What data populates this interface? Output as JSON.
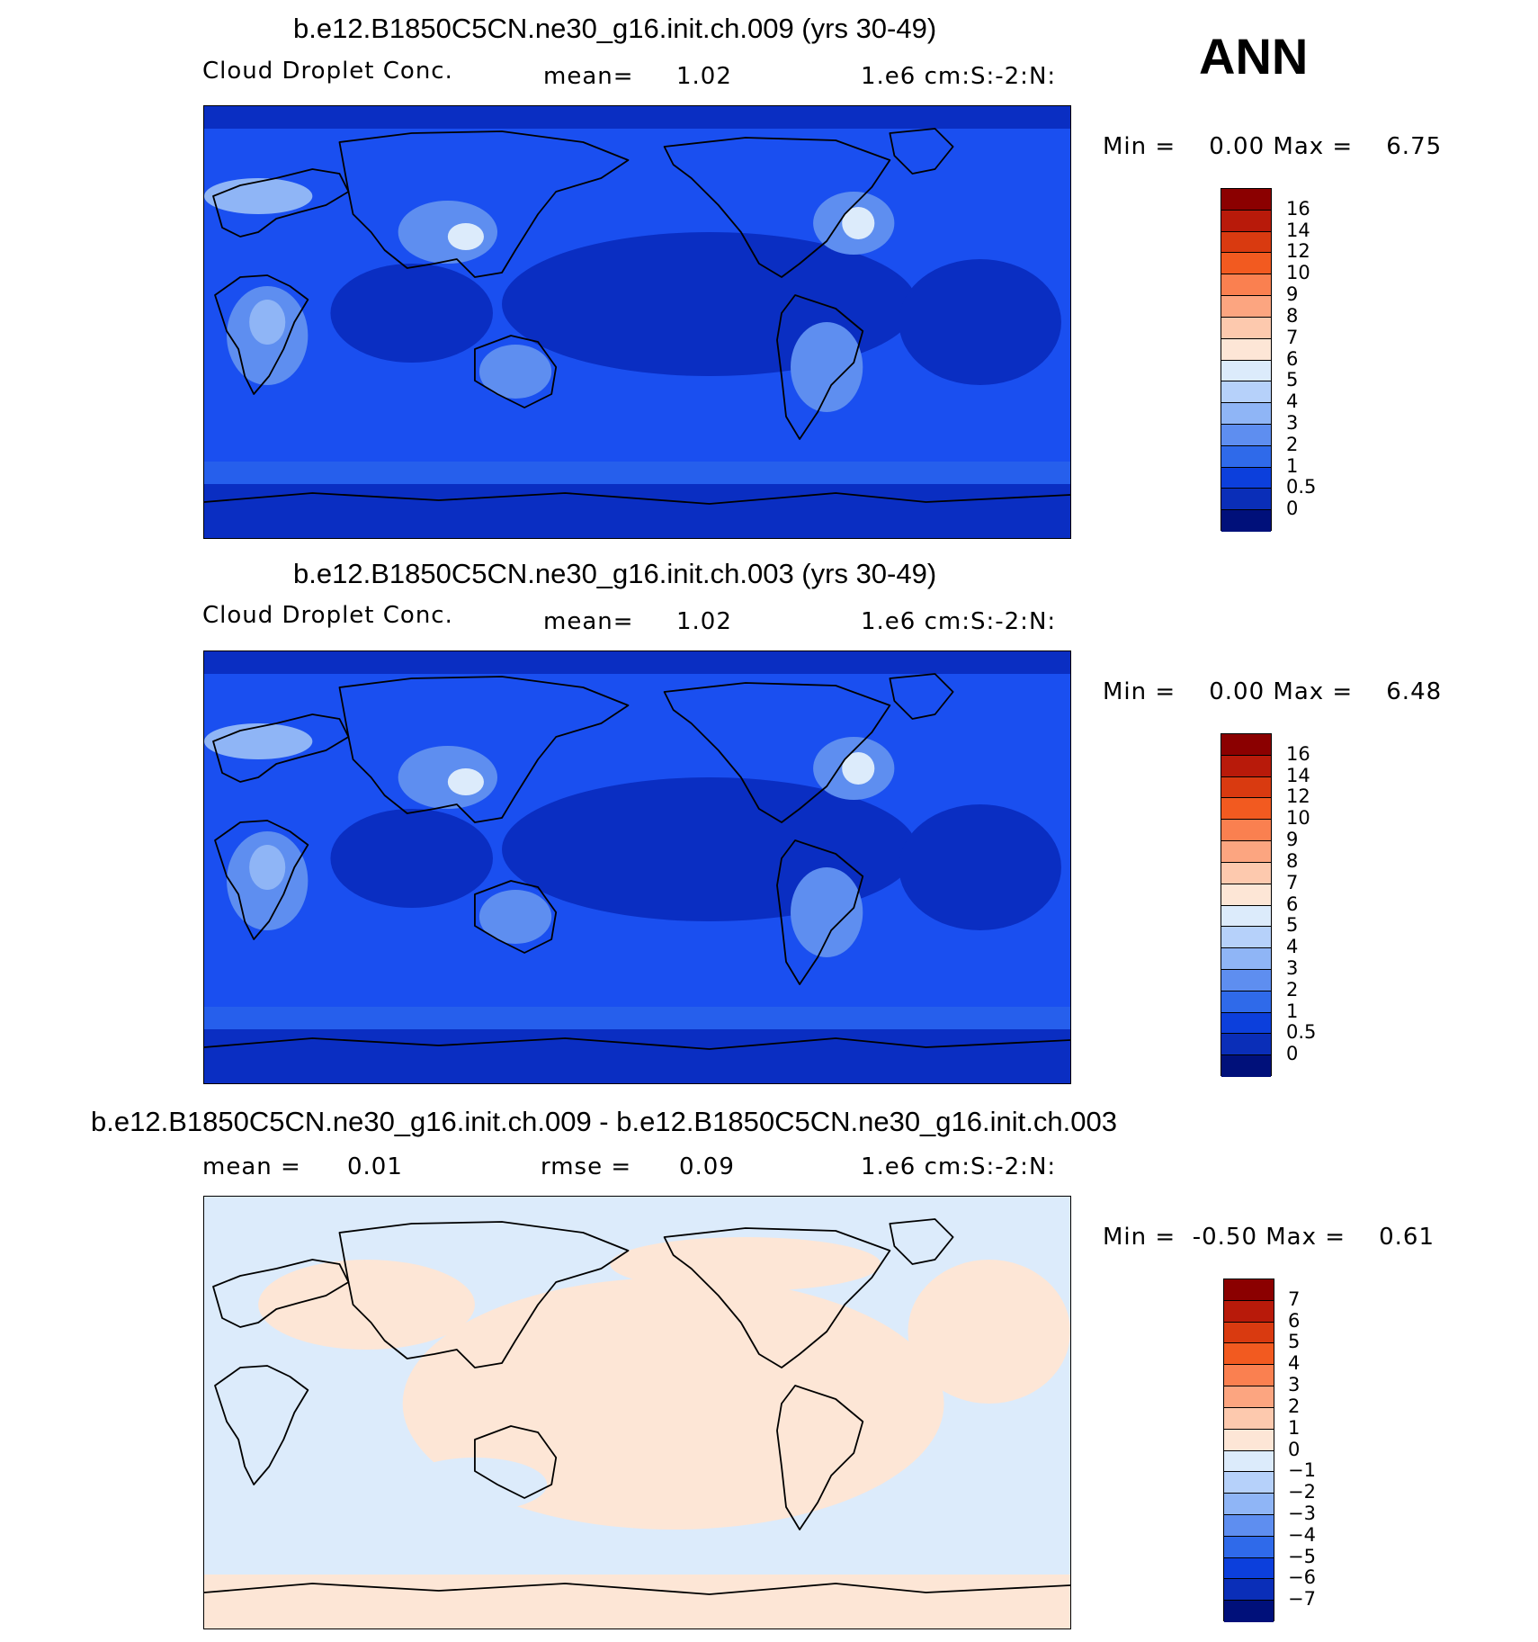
{
  "season": "ANN",
  "panels": [
    {
      "title": "b.e12.B1850C5CN.ne30_g16.init.ch.009 (yrs 30-49)",
      "variable": "Cloud Droplet Conc.",
      "stat_left": "mean=",
      "stat_left_value": "1.02",
      "units": "1.e6 cm:S:-2:N:",
      "minmax": "Min =    0.00 Max =    6.75",
      "colorbar_labels": [
        "16",
        "14",
        "12",
        "10",
        "9",
        "8",
        "7",
        "6",
        "5",
        "4",
        "3",
        "2",
        "1",
        "0.5",
        "0"
      ],
      "colorbar_colors": [
        "#8b0000",
        "#b81a0a",
        "#d93a10",
        "#f25a20",
        "#fa8050",
        "#fca580",
        "#fdc9ae",
        "#fde6d6",
        "#dcebfb",
        "#b6d1fa",
        "#8fb5f6",
        "#5e8ef0",
        "#2f6aea",
        "#0c3fdc",
        "#0a2eb8",
        "#00107a"
      ]
    },
    {
      "title": "b.e12.B1850C5CN.ne30_g16.init.ch.003 (yrs 30-49)",
      "variable": "Cloud Droplet Conc.",
      "stat_left": "mean=",
      "stat_left_value": "1.02",
      "units": "1.e6 cm:S:-2:N:",
      "minmax": "Min =    0.00 Max =    6.48",
      "colorbar_labels": [
        "16",
        "14",
        "12",
        "10",
        "9",
        "8",
        "7",
        "6",
        "5",
        "4",
        "3",
        "2",
        "1",
        "0.5",
        "0"
      ],
      "colorbar_colors": [
        "#8b0000",
        "#b81a0a",
        "#d93a10",
        "#f25a20",
        "#fa8050",
        "#fca580",
        "#fdc9ae",
        "#fde6d6",
        "#dcebfb",
        "#b6d1fa",
        "#8fb5f6",
        "#5e8ef0",
        "#2f6aea",
        "#0c3fdc",
        "#0a2eb8",
        "#00107a"
      ]
    },
    {
      "title": "b.e12.B1850C5CN.ne30_g16.init.ch.009 - b.e12.B1850C5CN.ne30_g16.init.ch.003",
      "stat_left": "mean =",
      "stat_left_value": "0.01",
      "stat_mid": "rmse =",
      "stat_mid_value": "0.09",
      "units": "1.e6 cm:S:-2:N:",
      "minmax": "Min =  -0.50 Max =    0.61",
      "colorbar_labels": [
        "7",
        "6",
        "5",
        "4",
        "3",
        "2",
        "1",
        "0",
        "-1",
        "-2",
        "-3",
        "-4",
        "-5",
        "-6",
        "-7"
      ],
      "colorbar_colors": [
        "#8b0000",
        "#b81a0a",
        "#d93a10",
        "#f25a20",
        "#fa8050",
        "#fca580",
        "#fdc9ae",
        "#fde6d6",
        "#dcebfb",
        "#b6d1fa",
        "#8fb5f6",
        "#5e8ef0",
        "#2f6aea",
        "#0c3fdc",
        "#0a2eb8",
        "#00107a"
      ]
    }
  ],
  "map_colors": {
    "ocean_deep": "#0a2ec2",
    "ocean_mid": "#1a4ff0",
    "ocean_light": "#2f6aea",
    "land_mid": "#5e8ef0",
    "land_high": "#8fb5f6",
    "land_peak": "#dcebfb",
    "diff_pos": "#fde6d6",
    "diff_neg": "#dcebfb",
    "coast": "#000000"
  }
}
